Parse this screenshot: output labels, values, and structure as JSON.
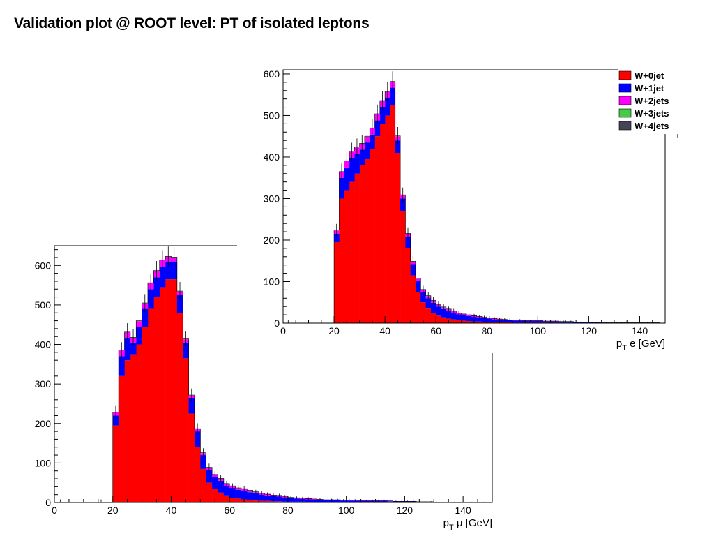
{
  "slide": {
    "title": "Validation plot @ ROOT level: PT of isolated leptons"
  },
  "colors": {
    "W+0jet": "#ff0000",
    "W+1jet": "#0000ff",
    "W+2jets": "#ff00ff",
    "W+3jets": "#44cc44",
    "W+4jets": "#444455"
  },
  "chart_data": [
    {
      "type": "stacked-histogram",
      "xlabel": "p_T μ [GeV]",
      "xlim": [
        0,
        150
      ],
      "ylim": [
        0,
        650
      ],
      "xticks": [
        "0",
        "20",
        "40",
        "60",
        "80",
        "100",
        "120",
        "140"
      ],
      "yticks": [
        "0",
        "100",
        "200",
        "300",
        "400",
        "500",
        "600"
      ],
      "bin_width": 2,
      "bin_start": 20,
      "series": [
        {
          "name": "W+0jet",
          "values": [
            195,
            320,
            360,
            375,
            400,
            445,
            490,
            520,
            545,
            565,
            565,
            480,
            365,
            225,
            140,
            85,
            50,
            35,
            25,
            18,
            12,
            10,
            8,
            6,
            5,
            4,
            4,
            3,
            3,
            2,
            2,
            2,
            2,
            1,
            1,
            1,
            1,
            1,
            1,
            1,
            1,
            1,
            1,
            1,
            1,
            1,
            1,
            1,
            1,
            1,
            1,
            1,
            1,
            1,
            1,
            0,
            0,
            0,
            0,
            0,
            0,
            0,
            0,
            0
          ]
        },
        {
          "name": "W+1jet",
          "values": [
            25,
            50,
            55,
            30,
            45,
            45,
            50,
            50,
            52,
            45,
            45,
            45,
            40,
            40,
            40,
            35,
            33,
            30,
            30,
            25,
            25,
            22,
            22,
            20,
            18,
            16,
            14,
            13,
            12,
            10,
            9,
            8,
            7,
            7,
            6,
            6,
            5,
            5,
            5,
            4,
            4,
            4,
            3,
            3,
            3,
            3,
            3,
            2,
            2,
            2,
            2,
            2,
            1,
            1,
            1,
            1,
            1,
            1,
            1,
            1,
            1,
            1,
            1,
            1
          ]
        },
        {
          "name": "W+2jets",
          "values": [
            8,
            15,
            17,
            12,
            14,
            14,
            15,
            16,
            16,
            12,
            10,
            9,
            8,
            6,
            6,
            5,
            5,
            5,
            5,
            4,
            4,
            4,
            4,
            4,
            3,
            3,
            3,
            3,
            3,
            3,
            2,
            2,
            2,
            2,
            2,
            1,
            1,
            1,
            1,
            1,
            1,
            1,
            1,
            1,
            1,
            1,
            1,
            1,
            0,
            0,
            0,
            0,
            0,
            0,
            0,
            0,
            0,
            0,
            0,
            0,
            0,
            0,
            0,
            0
          ]
        },
        {
          "name": "W+3jets",
          "values": [
            1,
            1,
            1,
            1,
            1,
            1,
            1,
            1,
            1,
            1,
            1,
            1,
            1,
            1,
            1,
            1,
            1,
            1,
            1,
            1,
            1,
            1,
            1,
            1,
            1,
            1,
            0,
            0,
            0,
            0,
            0,
            0,
            0,
            0,
            0,
            0,
            0,
            0,
            0,
            0,
            0,
            0,
            0,
            0,
            0,
            0,
            0,
            0,
            0,
            0,
            0,
            0,
            0,
            0,
            0,
            0,
            0,
            0,
            0,
            0,
            0,
            0,
            0,
            0
          ]
        },
        {
          "name": "W+4jets",
          "values": [
            0,
            0,
            0,
            0,
            0,
            0,
            0,
            0,
            0,
            0,
            0,
            0,
            0,
            0,
            0,
            0,
            0,
            0,
            0,
            0,
            0,
            0,
            0,
            0,
            0,
            0,
            0,
            0,
            0,
            0,
            0,
            0,
            0,
            0,
            0,
            0,
            0,
            0,
            0,
            0,
            0,
            0,
            0,
            0,
            0,
            0,
            0,
            0,
            0,
            0,
            0,
            0,
            0,
            0,
            0,
            0,
            0,
            0,
            0,
            0,
            0,
            0,
            0,
            0
          ]
        }
      ],
      "legend": "none"
    },
    {
      "type": "stacked-histogram",
      "xlabel": "p_T e [GeV]",
      "xlim": [
        0,
        150
      ],
      "ylim": [
        0,
        610
      ],
      "xticks": [
        "0",
        "20",
        "40",
        "60",
        "80",
        "100",
        "120",
        "140"
      ],
      "yticks": [
        "0",
        "100",
        "200",
        "300",
        "400",
        "500",
        "600"
      ],
      "bin_width": 2,
      "bin_start": 20,
      "series": [
        {
          "name": "W+0jet",
          "values": [
            195,
            300,
            320,
            340,
            360,
            380,
            395,
            420,
            450,
            480,
            500,
            525,
            410,
            270,
            180,
            115,
            75,
            50,
            35,
            25,
            18,
            14,
            11,
            9,
            7,
            6,
            5,
            4,
            4,
            3,
            3,
            2,
            2,
            2,
            2,
            1,
            1,
            1,
            1,
            1,
            1,
            1,
            1,
            1,
            1,
            1,
            1,
            0,
            0,
            0,
            0,
            0,
            0,
            0,
            0,
            0,
            0,
            0,
            0,
            0,
            0,
            0,
            0,
            0
          ]
        },
        {
          "name": "W+1jet",
          "values": [
            20,
            50,
            55,
            58,
            48,
            38,
            40,
            34,
            38,
            40,
            42,
            42,
            30,
            30,
            28,
            27,
            26,
            25,
            25,
            24,
            22,
            20,
            18,
            16,
            14,
            13,
            12,
            11,
            10,
            9,
            8,
            7,
            6,
            6,
            5,
            5,
            5,
            4,
            4,
            4,
            4,
            3,
            3,
            3,
            3,
            3,
            3,
            2,
            2,
            2,
            2,
            2,
            1,
            1,
            1,
            1,
            1,
            1,
            1,
            1,
            1,
            1,
            1,
            1
          ]
        },
        {
          "name": "W+2jets",
          "values": [
            8,
            14,
            15,
            15,
            15,
            14,
            14,
            15,
            15,
            15,
            15,
            14,
            10,
            8,
            7,
            6,
            6,
            5,
            5,
            5,
            4,
            4,
            4,
            4,
            3,
            3,
            3,
            3,
            2,
            2,
            2,
            2,
            2,
            1,
            1,
            1,
            1,
            1,
            1,
            1,
            1,
            1,
            1,
            1,
            0,
            0,
            0,
            0,
            0,
            0,
            0,
            0,
            0,
            0,
            0,
            0,
            0,
            0,
            0,
            0,
            0,
            0,
            0,
            0
          ]
        },
        {
          "name": "W+3jets",
          "values": [
            1,
            1,
            1,
            1,
            1,
            1,
            1,
            1,
            1,
            1,
            1,
            1,
            1,
            1,
            1,
            1,
            1,
            1,
            1,
            1,
            1,
            1,
            1,
            0,
            0,
            0,
            0,
            0,
            0,
            0,
            0,
            0,
            0,
            0,
            0,
            0,
            0,
            0,
            0,
            0,
            0,
            0,
            0,
            0,
            0,
            0,
            0,
            0,
            0,
            0,
            0,
            0,
            0,
            0,
            0,
            0,
            0,
            0,
            0,
            0,
            0,
            0,
            0,
            0
          ]
        },
        {
          "name": "W+4jets",
          "values": [
            0,
            0,
            0,
            0,
            0,
            0,
            0,
            0,
            0,
            0,
            0,
            0,
            0,
            0,
            0,
            0,
            0,
            0,
            0,
            0,
            0,
            0,
            0,
            0,
            0,
            0,
            0,
            0,
            0,
            0,
            0,
            0,
            0,
            0,
            0,
            0,
            0,
            0,
            0,
            0,
            0,
            0,
            0,
            0,
            0,
            0,
            0,
            0,
            0,
            0,
            0,
            0,
            0,
            0,
            0,
            0,
            0,
            0,
            0,
            0,
            0,
            0,
            0,
            0
          ]
        }
      ],
      "legend": "top-right"
    }
  ]
}
